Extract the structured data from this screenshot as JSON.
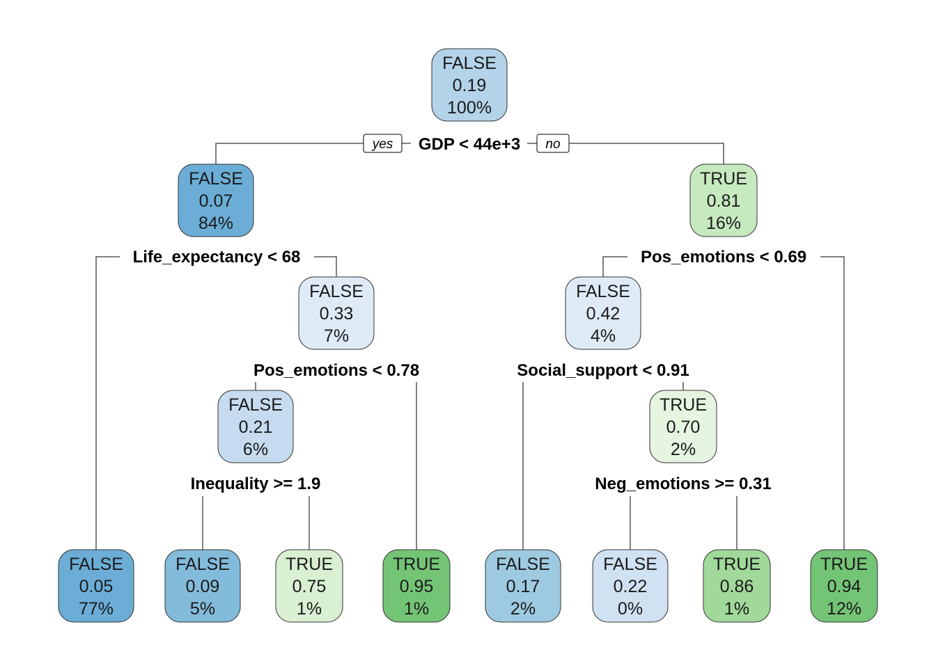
{
  "branch_labels": {
    "yes": "yes",
    "no": "no"
  },
  "nodes": [
    {
      "id": "n1",
      "cls": "FALSE",
      "prob": "0.19",
      "pct": "100%",
      "color": "#b3d3e9"
    },
    {
      "id": "n2",
      "cls": "FALSE",
      "prob": "0.07",
      "pct": "84%",
      "color": "#6badd6"
    },
    {
      "id": "n3",
      "cls": "TRUE",
      "prob": "0.81",
      "pct": "16%",
      "color": "#c7e9c0"
    },
    {
      "id": "n5",
      "cls": "FALSE",
      "prob": "0.33",
      "pct": "7%",
      "color": "#deebf7"
    },
    {
      "id": "n6",
      "cls": "FALSE",
      "prob": "0.42",
      "pct": "4%",
      "color": "#deebf7"
    },
    {
      "id": "n10",
      "cls": "FALSE",
      "prob": "0.21",
      "pct": "6%",
      "color": "#c6dbef"
    },
    {
      "id": "n13",
      "cls": "TRUE",
      "prob": "0.70",
      "pct": "2%",
      "color": "#e5f5e0"
    },
    {
      "id": "n4",
      "cls": "FALSE",
      "prob": "0.05",
      "pct": "77%",
      "color": "#6badd6"
    },
    {
      "id": "n20",
      "cls": "FALSE",
      "prob": "0.09",
      "pct": "5%",
      "color": "#83bbdb"
    },
    {
      "id": "n21",
      "cls": "TRUE",
      "prob": "0.75",
      "pct": "1%",
      "color": "#d9f0d3"
    },
    {
      "id": "n11",
      "cls": "TRUE",
      "prob": "0.95",
      "pct": "1%",
      "color": "#74c476"
    },
    {
      "id": "n12",
      "cls": "FALSE",
      "prob": "0.17",
      "pct": "2%",
      "color": "#9ecae1"
    },
    {
      "id": "n26",
      "cls": "FALSE",
      "prob": "0.22",
      "pct": "0%",
      "color": "#d0e1f2"
    },
    {
      "id": "n27",
      "cls": "TRUE",
      "prob": "0.86",
      "pct": "1%",
      "color": "#a1d99b"
    },
    {
      "id": "n7",
      "cls": "TRUE",
      "prob": "0.94",
      "pct": "12%",
      "color": "#74c476"
    }
  ],
  "splits": [
    {
      "id": "s1",
      "label": "GDP < 44e+3"
    },
    {
      "id": "s2",
      "label": "Life_expectancy < 68"
    },
    {
      "id": "s3",
      "label": "Pos_emotions < 0.69"
    },
    {
      "id": "s5",
      "label": "Pos_emotions < 0.78"
    },
    {
      "id": "s6",
      "label": "Social_support < 0.91"
    },
    {
      "id": "s10",
      "label": "Inequality >= 1.9"
    },
    {
      "id": "s13",
      "label": "Neg_emotions >= 0.31"
    }
  ]
}
